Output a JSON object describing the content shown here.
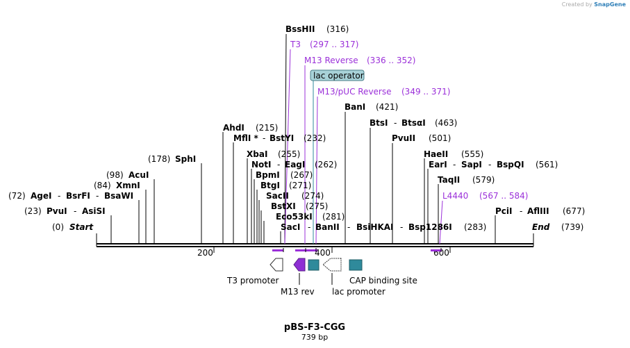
{
  "credit": {
    "prefix": "Created by",
    "logo": "SnapGene"
  },
  "plasmid": {
    "name": "pBS-F3-CGG",
    "size": "739 bp"
  },
  "ruler": {
    "ticks": [
      "200",
      "400",
      "600"
    ]
  },
  "start_label": {
    "pos": "(0)",
    "text": "Start"
  },
  "end_label": {
    "text": "End",
    "pos": "(739)"
  },
  "sites": [
    {
      "name": "BssHII",
      "pos": "(316)"
    },
    {
      "name": "BanI",
      "pos": "(421)"
    },
    {
      "name": "BtsI",
      "name2": "BtsαI",
      "pos": "(463)"
    },
    {
      "name": "PvuII",
      "pos": "(501)"
    },
    {
      "name": "HaeII",
      "pos": "(555)"
    },
    {
      "name": "EarI",
      "name2": "SapI",
      "name3": "BspQI",
      "pos": "(561)"
    },
    {
      "name": "TaqII",
      "pos": "(579)"
    },
    {
      "name": "PciI",
      "name2": "AflIII",
      "pos": "(677)"
    },
    {
      "name": "AhdI",
      "pos": "(215)"
    },
    {
      "name": "MflI *",
      "name2": "BstYI",
      "pos": "(232)"
    },
    {
      "name": "SphI",
      "pos": "(178)"
    },
    {
      "name": "XbaI",
      "pos": "(255)"
    },
    {
      "name": "NotI",
      "name2": "EagI",
      "pos": "(262)"
    },
    {
      "name": "BpmI",
      "pos": "(267)"
    },
    {
      "name": "BtgI",
      "pos": "(271)"
    },
    {
      "name": "SacII",
      "pos": "(274)"
    },
    {
      "name": "BstXI",
      "pos": "(275)"
    },
    {
      "name": "Eco53kI",
      "pos": "(281)"
    },
    {
      "name": "SacI",
      "name2": "BanII",
      "name3": "BsiHKAI",
      "name4": "Bsp1286I",
      "pos": "(283)"
    },
    {
      "name": "AcuI",
      "pos": "(98)"
    },
    {
      "name": "XmnI",
      "pos": "(84)"
    },
    {
      "name": "AgeI",
      "name2": "BsrFI",
      "name3": "BsaWI",
      "pos": "(72)"
    },
    {
      "name": "PvuI",
      "name2": "AsiSI",
      "pos": "(23)"
    }
  ],
  "primers": [
    {
      "name": "T3",
      "range": "(297 .. 317)"
    },
    {
      "name": "M13 Reverse",
      "range": "(336 .. 352)"
    },
    {
      "name": "M13/pUC Reverse",
      "range": "(349 .. 371)"
    },
    {
      "name": "L4440",
      "range": "(567 .. 584)"
    }
  ],
  "features": {
    "lac_operator": "lac operator",
    "t3_promoter": "T3 promoter",
    "m13_rev": "M13 rev",
    "lac_promoter": "lac promoter",
    "cap_site": "CAP binding site"
  },
  "colors": {
    "primer": "#9b30d9",
    "operator_fill": "#a8d2d8",
    "cap_fill": "#2f8a9b"
  }
}
